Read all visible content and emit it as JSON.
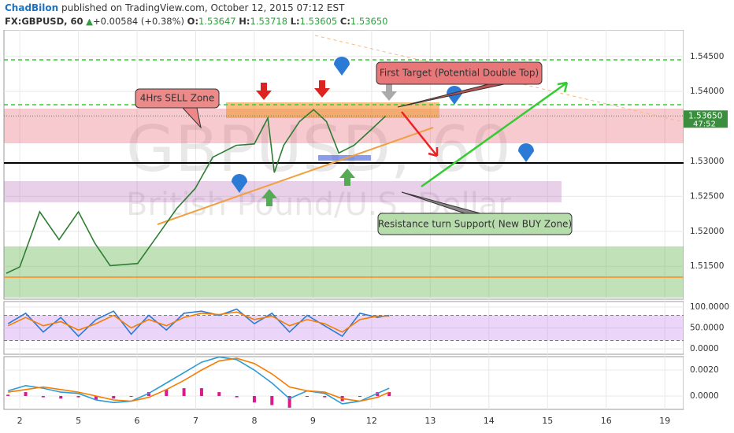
{
  "header": {
    "author": "ChadBilon",
    "published": "published on TradingView.com, October 12, 2015 07:12 EST",
    "symbol": "FX:GBPUSD, 60",
    "change": "+0.00584 (+0.38%)",
    "open_label": "O:",
    "open": "1.53647",
    "high_label": "H:",
    "high": "1.53718",
    "low_label": "L:",
    "low": "1.53605",
    "close_label": "C:",
    "close": "1.53650"
  },
  "chart_data": [
    {
      "type": "line",
      "watermark": "GBPUSD, 60",
      "watermark_subtitle": "British Pound/U.S. Dollar",
      "annotations": [
        "4Hrs SELL Zone",
        "First Target (Potential Double Top)",
        "Resistance turn Support( New BUY Zone)"
      ],
      "x": [
        -0.23,
        0,
        0.34,
        0.67,
        1.0,
        1.28,
        1.54,
        2.01,
        2.35,
        2.68,
        2.99,
        3.29,
        3.69,
        4.0,
        4.23,
        4.34,
        4.5,
        4.77,
        5.01,
        5.23,
        5.44,
        5.7,
        6.0,
        6.24
      ],
      "values": [
        1.514,
        1.5149,
        1.5228,
        1.5188,
        1.5228,
        1.5183,
        1.5151,
        1.5154,
        1.5194,
        1.5233,
        1.5261,
        1.5306,
        1.5323,
        1.5325,
        1.5362,
        1.5284,
        1.5323,
        1.5357,
        1.5374,
        1.5357,
        1.5312,
        1.5323,
        1.5346,
        1.5365
      ],
      "color": "#2e7d32",
      "xlim": [
        -0.27,
        11.32
      ],
      "ylim": [
        1.5103,
        1.5488
      ],
      "yticks": [
        {
          "value": 1.515,
          "label": "1.51500"
        },
        {
          "value": 1.52,
          "label": "1.52000"
        },
        {
          "value": 1.525,
          "label": "1.52500"
        },
        {
          "value": 1.53,
          "label": "1.53000"
        },
        {
          "value": 1.54,
          "label": "1.54000"
        },
        {
          "value": 1.545,
          "label": "1.54500"
        }
      ],
      "last_price": {
        "value": 1.5365,
        "label": "1.53650"
      },
      "countdown": "47:52",
      "grid": true
    },
    {
      "type": "line",
      "bands": [
        20,
        80
      ],
      "x": [
        -0.2,
        0.1,
        0.4,
        0.7,
        1.0,
        1.3,
        1.6,
        1.9,
        2.2,
        2.5,
        2.8,
        3.1,
        3.4,
        3.7,
        4.0,
        4.3,
        4.6,
        4.9,
        5.2,
        5.5,
        5.8,
        6.1,
        6.3
      ],
      "series": [
        {
          "color": "#2b7bd6",
          "values": [
            60,
            85,
            40,
            75,
            30,
            70,
            90,
            35,
            80,
            45,
            85,
            90,
            80,
            95,
            60,
            85,
            40,
            80,
            55,
            30,
            85,
            75,
            80
          ]
        },
        {
          "color": "#f57c00",
          "values": [
            55,
            75,
            55,
            65,
            45,
            60,
            80,
            50,
            70,
            55,
            75,
            85,
            82,
            88,
            70,
            78,
            55,
            70,
            60,
            40,
            70,
            78,
            78
          ]
        }
      ],
      "xlim": [
        -0.27,
        11.32
      ],
      "ylim": [
        -13,
        113
      ],
      "yticks": [
        {
          "value": 0,
          "label": "0.0000"
        },
        {
          "value": 50,
          "label": "50.0000"
        },
        {
          "value": 100,
          "label": "100.0000"
        }
      ],
      "grid": true
    },
    {
      "type": "line",
      "x": [
        -0.2,
        0.1,
        0.4,
        0.7,
        1.0,
        1.3,
        1.6,
        1.9,
        2.2,
        2.5,
        2.8,
        3.1,
        3.4,
        3.7,
        4.0,
        4.3,
        4.6,
        4.9,
        5.2,
        5.5,
        5.8,
        6.1,
        6.3
      ],
      "series": [
        {
          "color": "#2b9bd6",
          "values": [
            0.0004,
            0.0008,
            0.0006,
            0.0003,
            0.0002,
            -0.0003,
            -0.0005,
            -0.0004,
            0.0002,
            0.001,
            0.0018,
            0.0026,
            0.003,
            0.0028,
            0.002,
            0.001,
            -0.0002,
            0.0004,
            0.0002,
            -0.0006,
            -0.0004,
            0.0002,
            0.0006
          ]
        },
        {
          "color": "#f57c00",
          "values": [
            0.0003,
            0.0005,
            0.0007,
            0.0005,
            0.0003,
            0,
            -0.0003,
            -0.0004,
            -0.0001,
            0.0005,
            0.0012,
            0.002,
            0.0027,
            0.0029,
            0.0025,
            0.0017,
            0.0007,
            0.0004,
            0.0003,
            -0.0002,
            -0.0004,
            -0.0001,
            0.0003
          ]
        }
      ],
      "histogram": {
        "color": "#d81b8c",
        "values": [
          0.0001,
          0.0003,
          -0.0001,
          -0.0002,
          -0.0001,
          -0.0003,
          -0.0002,
          0,
          0.0003,
          0.0005,
          0.0006,
          0.0006,
          0.0003,
          -0.0001,
          -0.0005,
          -0.0007,
          -0.0009,
          0,
          -0.0001,
          -0.0004,
          0,
          0.0003,
          0.0003
        ]
      },
      "xlim": [
        -0.27,
        11.32
      ],
      "ylim": [
        -0.00103,
        0.00303
      ],
      "yticks": [
        {
          "value": 0,
          "label": "0.0000"
        },
        {
          "value": 0.002,
          "label": "0.0020"
        }
      ],
      "xticks": [
        {
          "value": 0,
          "label": "2"
        },
        {
          "value": 1,
          "label": "5"
        },
        {
          "value": 2,
          "label": "6"
        },
        {
          "value": 3,
          "label": "7"
        },
        {
          "value": 4,
          "label": "8"
        },
        {
          "value": 5,
          "label": "9"
        },
        {
          "value": 6,
          "label": "12"
        },
        {
          "value": 7,
          "label": "13"
        },
        {
          "value": 8,
          "label": "14"
        },
        {
          "value": 9,
          "label": "15"
        },
        {
          "value": 10,
          "label": "16"
        },
        {
          "value": 11,
          "label": "19"
        }
      ],
      "grid": true
    }
  ]
}
